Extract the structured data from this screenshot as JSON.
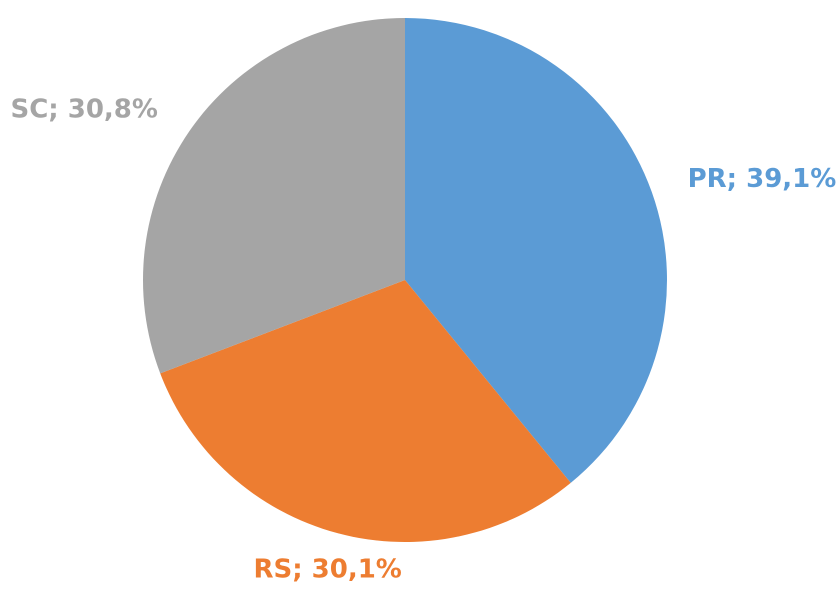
{
  "chart_data": {
    "type": "pie",
    "values": [
      39.1,
      30.1,
      30.8
    ],
    "value_labels": [
      "PR; 39,1%",
      "RS; 30,1%",
      "SC; 30,8%"
    ],
    "colors": [
      "#5b9bd5",
      "#ed7d31",
      "#a5a5a5"
    ]
  }
}
